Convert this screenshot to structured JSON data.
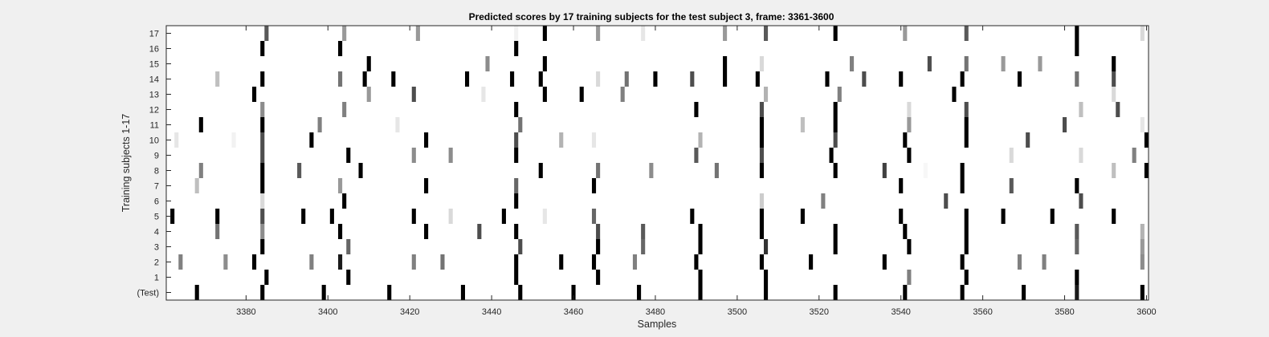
{
  "chart_data": {
    "type": "heatmap",
    "title": "Predicted scores by 17 training subjects for the test subject 3, frame: 3361-3600",
    "xlabel": "Samples",
    "ylabel": "Training subjects 1-17",
    "xlim": [
      3361,
      3600
    ],
    "x_ticks": [
      "3380",
      "3400",
      "3420",
      "3440",
      "3460",
      "3480",
      "3500",
      "3520",
      "3540",
      "3560",
      "3580",
      "3600"
    ],
    "rows": [
      "(Test)",
      "1",
      "2",
      "3",
      "4",
      "5",
      "6",
      "7",
      "8",
      "9",
      "10",
      "11",
      "12",
      "13",
      "14",
      "15",
      "16",
      "17"
    ],
    "colormap": "gray (0 = black, 1 = white)",
    "background_value": 1.0,
    "cells": [
      {
        "row": "(Test)",
        "marks": [
          [
            3368,
            0.0
          ],
          [
            3384,
            0.0
          ],
          [
            3399,
            0.0
          ],
          [
            3415,
            0.0
          ],
          [
            3433,
            0.0
          ],
          [
            3447,
            0.0
          ],
          [
            3460,
            0.0
          ],
          [
            3476,
            0.0
          ],
          [
            3491,
            0.0
          ],
          [
            3507,
            0.0
          ],
          [
            3524,
            0.0
          ],
          [
            3541,
            0.0
          ],
          [
            3555,
            0.0
          ],
          [
            3570,
            0.0
          ],
          [
            3583,
            0.1
          ],
          [
            3599,
            0.0
          ]
        ]
      },
      {
        "row": "1",
        "marks": [
          [
            3385,
            0.0
          ],
          [
            3405,
            0.0
          ],
          [
            3446,
            0.0
          ],
          [
            3466,
            0.0
          ],
          [
            3491,
            0.0
          ],
          [
            3507,
            0.0
          ],
          [
            3542,
            0.5
          ],
          [
            3556,
            0.0
          ],
          [
            3583,
            0.0
          ]
        ]
      },
      {
        "row": "2",
        "marks": [
          [
            3364,
            0.5
          ],
          [
            3375,
            0.55
          ],
          [
            3382,
            0.0
          ],
          [
            3396,
            0.5
          ],
          [
            3403,
            0.1
          ],
          [
            3421,
            0.5
          ],
          [
            3428,
            0.45
          ],
          [
            3446,
            0.0
          ],
          [
            3457,
            0.0
          ],
          [
            3465,
            0.0
          ],
          [
            3475,
            0.5
          ],
          [
            3490,
            0.0
          ],
          [
            3506,
            0.0
          ],
          [
            3518,
            0.0
          ],
          [
            3536,
            0.0
          ],
          [
            3555,
            0.0
          ],
          [
            3569,
            0.5
          ],
          [
            3575,
            0.5
          ],
          [
            3599,
            0.55
          ]
        ]
      },
      {
        "row": "3",
        "marks": [
          [
            3384,
            0.0
          ],
          [
            3405,
            0.4
          ],
          [
            3447,
            0.3
          ],
          [
            3466,
            0.0
          ],
          [
            3477,
            0.4
          ],
          [
            3491,
            0.0
          ],
          [
            3507,
            0.2
          ],
          [
            3524,
            0.0
          ],
          [
            3542,
            0.0
          ],
          [
            3556,
            0.0
          ],
          [
            3583,
            0.4
          ],
          [
            3599,
            0.6
          ]
        ]
      },
      {
        "row": "4",
        "marks": [
          [
            3373,
            0.45
          ],
          [
            3384,
            0.55
          ],
          [
            3403,
            0.0
          ],
          [
            3424,
            0.0
          ],
          [
            3437,
            0.3
          ],
          [
            3446,
            0.0
          ],
          [
            3466,
            0.3
          ],
          [
            3477,
            0.35
          ],
          [
            3491,
            0.0
          ],
          [
            3506,
            0.0
          ],
          [
            3524,
            0.0
          ],
          [
            3541,
            0.0
          ],
          [
            3556,
            0.0
          ],
          [
            3583,
            0.35
          ],
          [
            3599,
            0.7
          ]
        ]
      },
      {
        "row": "5",
        "marks": [
          [
            3362,
            0.0
          ],
          [
            3373,
            0.0
          ],
          [
            3384,
            0.3
          ],
          [
            3394,
            0.0
          ],
          [
            3401,
            0.0
          ],
          [
            3421,
            0.0
          ],
          [
            3430,
            0.85
          ],
          [
            3443,
            0.0
          ],
          [
            3453,
            0.9
          ],
          [
            3465,
            0.4
          ],
          [
            3489,
            0.0
          ],
          [
            3506,
            0.0
          ],
          [
            3516,
            0.0
          ],
          [
            3540,
            0.0
          ],
          [
            3556,
            0.0
          ],
          [
            3565,
            0.0
          ],
          [
            3577,
            0.0
          ],
          [
            3592,
            0.0
          ]
        ]
      },
      {
        "row": "6",
        "marks": [
          [
            3384,
            0.85
          ],
          [
            3404,
            0.0
          ],
          [
            3446,
            0.0
          ],
          [
            3506,
            0.8
          ],
          [
            3521,
            0.5
          ],
          [
            3551,
            0.3
          ],
          [
            3584,
            0.3
          ]
        ]
      },
      {
        "row": "7",
        "marks": [
          [
            3368,
            0.75
          ],
          [
            3384,
            0.0
          ],
          [
            3403,
            0.6
          ],
          [
            3424,
            0.0
          ],
          [
            3446,
            0.4
          ],
          [
            3465,
            0.0
          ],
          [
            3540,
            0.0
          ],
          [
            3555,
            0.0
          ],
          [
            3567,
            0.35
          ],
          [
            3583,
            0.0
          ]
        ]
      },
      {
        "row": "8",
        "marks": [
          [
            3369,
            0.5
          ],
          [
            3384,
            0.0
          ],
          [
            3393,
            0.35
          ],
          [
            3408,
            0.0
          ],
          [
            3452,
            0.0
          ],
          [
            3466,
            0.45
          ],
          [
            3479,
            0.55
          ],
          [
            3495,
            0.45
          ],
          [
            3506,
            0.0
          ],
          [
            3524,
            0.0
          ],
          [
            3536,
            0.25
          ],
          [
            3546,
            0.97
          ],
          [
            3555,
            0.0
          ],
          [
            3592,
            0.75
          ],
          [
            3600,
            0.0
          ]
        ]
      },
      {
        "row": "9",
        "marks": [
          [
            3384,
            0.3
          ],
          [
            3405,
            0.0
          ],
          [
            3421,
            0.55
          ],
          [
            3430,
            0.55
          ],
          [
            3446,
            0.0
          ],
          [
            3490,
            0.35
          ],
          [
            3506,
            0.3
          ],
          [
            3523,
            0.0
          ],
          [
            3542,
            0.0
          ],
          [
            3567,
            0.85
          ],
          [
            3584,
            0.85
          ],
          [
            3597,
            0.5
          ]
        ]
      },
      {
        "row": "10",
        "marks": [
          [
            3363,
            0.9
          ],
          [
            3377,
            0.95
          ],
          [
            3384,
            0.3
          ],
          [
            3396,
            0.0
          ],
          [
            3424,
            0.0
          ],
          [
            3446,
            0.3
          ],
          [
            3457,
            0.7
          ],
          [
            3465,
            0.9
          ],
          [
            3491,
            0.7
          ],
          [
            3506,
            0.0
          ],
          [
            3524,
            0.3
          ],
          [
            3541,
            0.0
          ],
          [
            3556,
            0.0
          ],
          [
            3571,
            0.3
          ],
          [
            3600,
            0.0
          ]
        ]
      },
      {
        "row": "11",
        "marks": [
          [
            3369,
            0.0
          ],
          [
            3384,
            0.0
          ],
          [
            3398,
            0.5
          ],
          [
            3417,
            0.9
          ],
          [
            3447,
            0.45
          ],
          [
            3506,
            0.0
          ],
          [
            3516,
            0.75
          ],
          [
            3524,
            0.0
          ],
          [
            3542,
            0.6
          ],
          [
            3556,
            0.0
          ],
          [
            3580,
            0.3
          ],
          [
            3599,
            0.9
          ]
        ]
      },
      {
        "row": "12",
        "marks": [
          [
            3384,
            0.55
          ],
          [
            3404,
            0.5
          ],
          [
            3446,
            0.0
          ],
          [
            3490,
            0.0
          ],
          [
            3506,
            0.3
          ],
          [
            3524,
            0.0
          ],
          [
            3542,
            0.85
          ],
          [
            3556,
            0.3
          ],
          [
            3584,
            0.75
          ],
          [
            3593,
            0.3
          ]
        ]
      },
      {
        "row": "13",
        "marks": [
          [
            3382,
            0.0
          ],
          [
            3410,
            0.6
          ],
          [
            3421,
            0.3
          ],
          [
            3438,
            0.9
          ],
          [
            3453,
            0.0
          ],
          [
            3462,
            0.0
          ],
          [
            3472,
            0.5
          ],
          [
            3507,
            0.7
          ],
          [
            3525,
            0.5
          ],
          [
            3553,
            0.0
          ],
          [
            3592,
            0.85
          ]
        ]
      },
      {
        "row": "14",
        "marks": [
          [
            3373,
            0.75
          ],
          [
            3384,
            0.0
          ],
          [
            3403,
            0.45
          ],
          [
            3409,
            0.0
          ],
          [
            3416,
            0.0
          ],
          [
            3434,
            0.0
          ],
          [
            3445,
            0.0
          ],
          [
            3452,
            0.0
          ],
          [
            3466,
            0.85
          ],
          [
            3473,
            0.45
          ],
          [
            3480,
            0.0
          ],
          [
            3489,
            0.3
          ],
          [
            3497,
            0.0
          ],
          [
            3505,
            0.0
          ],
          [
            3522,
            0.0
          ],
          [
            3531,
            0.3
          ],
          [
            3540,
            0.0
          ],
          [
            3555,
            0.0
          ],
          [
            3569,
            0.0
          ],
          [
            3583,
            0.45
          ],
          [
            3592,
            0.3
          ]
        ]
      },
      {
        "row": "15",
        "marks": [
          [
            3410,
            0.0
          ],
          [
            3439,
            0.55
          ],
          [
            3453,
            0.0
          ],
          [
            3497,
            0.0
          ],
          [
            3506,
            0.85
          ],
          [
            3528,
            0.5
          ],
          [
            3547,
            0.3
          ],
          [
            3556,
            0.45
          ],
          [
            3565,
            0.6
          ],
          [
            3574,
            0.6
          ],
          [
            3592,
            0.0
          ]
        ]
      },
      {
        "row": "16",
        "marks": [
          [
            3384,
            0.0
          ],
          [
            3403,
            0.0
          ],
          [
            3446,
            0.0
          ],
          [
            3583,
            0.0
          ]
        ]
      },
      {
        "row": "17",
        "marks": [
          [
            3385,
            0.35
          ],
          [
            3404,
            0.6
          ],
          [
            3422,
            0.6
          ],
          [
            3446,
            0.95
          ],
          [
            3453,
            0.0
          ],
          [
            3466,
            0.6
          ],
          [
            3477,
            0.9
          ],
          [
            3497,
            0.6
          ],
          [
            3507,
            0.35
          ],
          [
            3524,
            0.0
          ],
          [
            3541,
            0.6
          ],
          [
            3556,
            0.35
          ],
          [
            3583,
            0.0
          ],
          [
            3599,
            0.85
          ]
        ]
      }
    ]
  }
}
